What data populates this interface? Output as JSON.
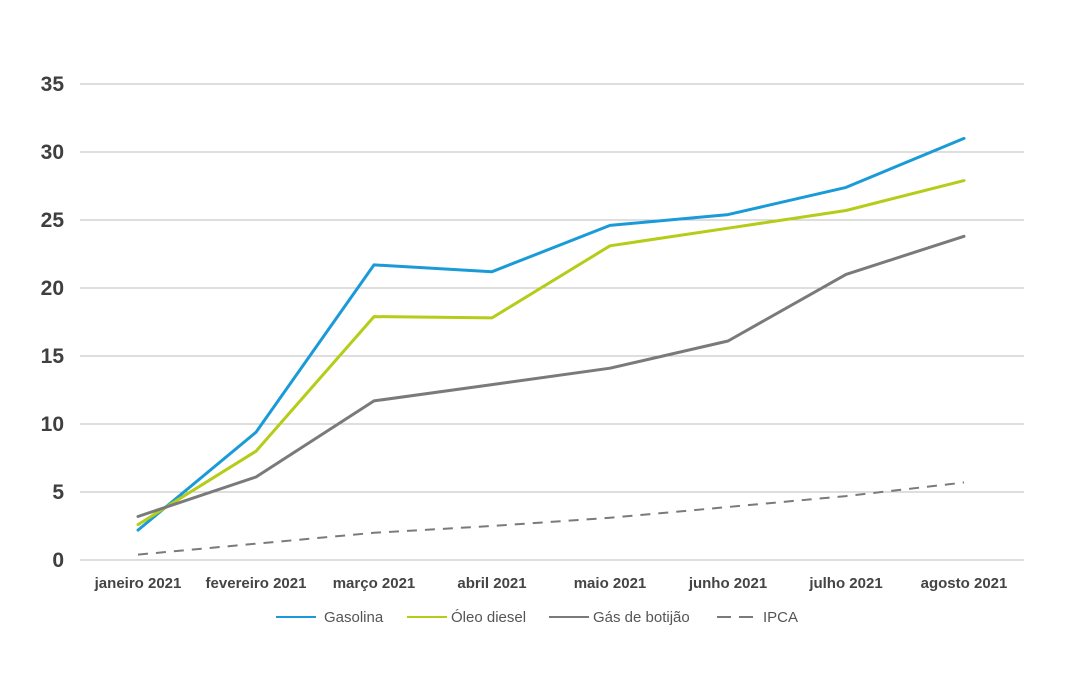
{
  "chart_data": {
    "type": "line",
    "title": "",
    "xlabel": "",
    "ylabel": "",
    "categories": [
      "janeiro 2021",
      "fevereiro 2021",
      "março 2021",
      "abril 2021",
      "maio 2021",
      "junho 2021",
      "julho 2021",
      "agosto 2021"
    ],
    "ylim": [
      0,
      35
    ],
    "yticks": [
      0,
      5,
      10,
      15,
      20,
      25,
      30,
      35
    ],
    "grid": true,
    "legend_position": "bottom",
    "series": [
      {
        "name": "Gasolina",
        "color": "#1a9bd7",
        "dash": "solid",
        "values": [
          2.2,
          9.4,
          21.7,
          21.2,
          24.6,
          25.4,
          27.4,
          31.0
        ]
      },
      {
        "name": "Óleo diesel",
        "color": "#b5cc18",
        "dash": "solid",
        "values": [
          2.6,
          8.0,
          17.9,
          17.8,
          23.1,
          24.4,
          25.7,
          27.9
        ]
      },
      {
        "name": "Gás de botijão",
        "color": "#7a7a7a",
        "dash": "solid",
        "values": [
          3.2,
          6.1,
          11.7,
          12.9,
          14.1,
          16.1,
          21.0,
          23.8
        ]
      },
      {
        "name": "IPCA",
        "color": "#7a7a7a",
        "dash": "dashed",
        "values": [
          0.4,
          1.2,
          2.0,
          2.5,
          3.1,
          3.9,
          4.7,
          5.7
        ]
      }
    ]
  }
}
